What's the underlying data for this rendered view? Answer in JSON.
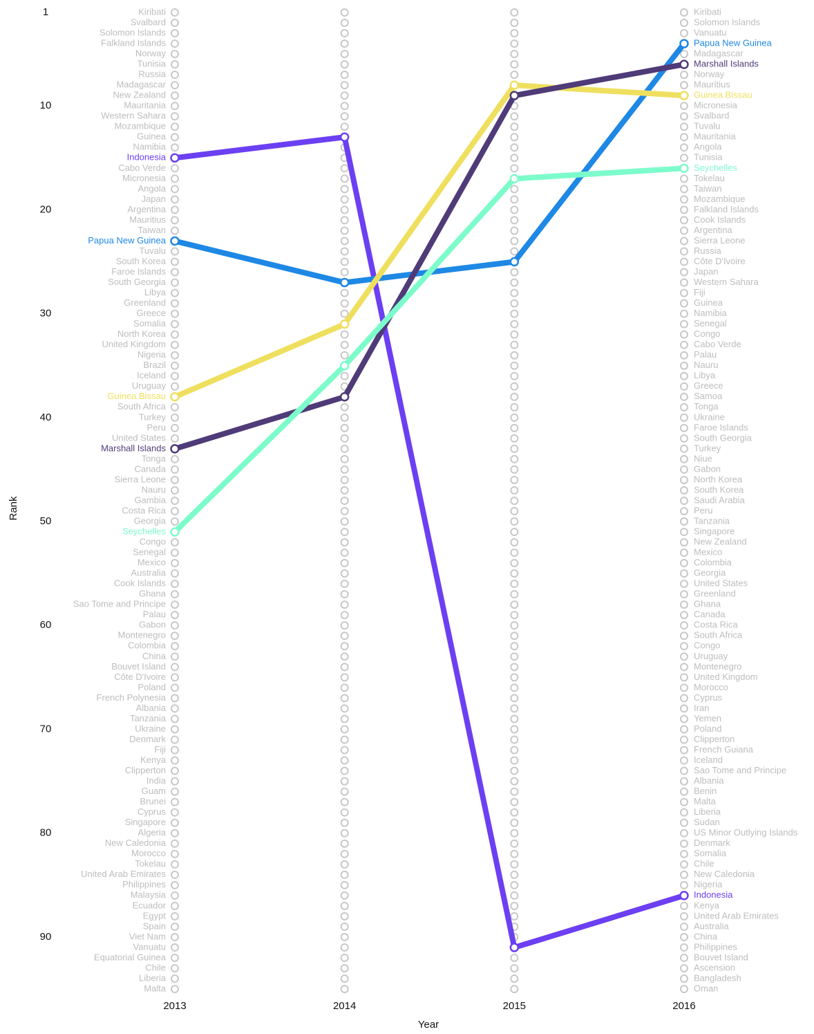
{
  "chart_data": {
    "type": "bump",
    "x": [
      2013,
      2014,
      2015,
      2016
    ],
    "xlabel": "Year",
    "ylabel": "Rank",
    "ylim": [
      1,
      95
    ],
    "yticks": [
      1,
      10,
      20,
      30,
      40,
      50,
      60,
      70,
      80,
      90
    ],
    "labels_first": [
      "Kiribati",
      "Svalbard",
      "Solomon Islands",
      "Falkland Islands",
      "Norway",
      "Tunisia",
      "Russia",
      "Madagascar",
      "New Zealand",
      "Mauritania",
      "Western Sahara",
      "Mozambique",
      "Guinea",
      "Namibia",
      "Indonesia",
      "Cabo Verde",
      "Micronesia",
      "Angola",
      "Japan",
      "Argentina",
      "Mauritius",
      "Taiwan",
      "Papua New Guinea",
      "Tuvalu",
      "South Korea",
      "Faroe Islands",
      "South Georgia",
      "Libya",
      "Greenland",
      "Greece",
      "Somalia",
      "North Korea",
      "United Kingdom",
      "Nigeria",
      "Brazil",
      "Iceland",
      "Uruguay",
      "Guinea Bissau",
      "South Africa",
      "Turkey",
      "Peru",
      "United States",
      "Marshall Islands",
      "Tonga",
      "Canada",
      "Sierra Leone",
      "Nauru",
      "Gambia",
      "Costa Rica",
      "Georgia",
      "Seychelles",
      "Congo",
      "Senegal",
      "Mexico",
      "Australia",
      "Cook Islands",
      "Ghana",
      "Sao Tome and Principe",
      "Palau",
      "Gabon",
      "Montenegro",
      "Colombia",
      "China",
      "Bouvet Island",
      "Côte D'Ivoire",
      "Poland",
      "French Polynesia",
      "Albania",
      "Tanzania",
      "Ukraine",
      "Denmark",
      "Fiji",
      "Kenya",
      "Clipperton",
      "India",
      "Guam",
      "Brunei",
      "Cyprus",
      "Singapore",
      "Algeria",
      "New Caledonia",
      "Morocco",
      "Tokelau",
      "United Arab Emirates",
      "Philippines",
      "Malaysia",
      "Ecuador",
      "Egypt",
      "Spain",
      "Viet Nam",
      "Vanuatu",
      "Equatorial Guinea",
      "Chile",
      "Liberia",
      "Malta"
    ],
    "labels_last": [
      "Kiribati",
      "Solomon Islands",
      "Vanuatu",
      "Papua New Guinea",
      "Madagascar",
      "Marshall Islands",
      "Norway",
      "Mauritius",
      "Guinea Bissau",
      "Micronesia",
      "Svalbard",
      "Tuvalu",
      "Mauritania",
      "Angola",
      "Tunisia",
      "Seychelles",
      "Tokelau",
      "Taiwan",
      "Mozambique",
      "Falkland Islands",
      "Cook Islands",
      "Argentina",
      "Sierra Leone",
      "Russia",
      "Côte D'Ivoire",
      "Japan",
      "Western Sahara",
      "Fiji",
      "Guinea",
      "Namibia",
      "Senegal",
      "Congo",
      "Cabo Verde",
      "Palau",
      "Nauru",
      "Libya",
      "Greece",
      "Samoa",
      "Tonga",
      "Ukraine",
      "Faroe Islands",
      "South Georgia",
      "Turkey",
      "Niue",
      "Gabon",
      "North Korea",
      "South Korea",
      "Saudi Arabia",
      "Peru",
      "Tanzania",
      "Singapore",
      "New Zealand",
      "Mexico",
      "Colombia",
      "Georgia",
      "United States",
      "Greenland",
      "Ghana",
      "Canada",
      "Costa Rica",
      "South Africa",
      "Congo",
      "Uruguay",
      "Montenegro",
      "United Kingdom",
      "Morocco",
      "Cyprus",
      "Iran",
      "Yemen",
      "Poland",
      "Clipperton",
      "French Guiana",
      "Iceland",
      "Sao Tome and Principe",
      "Albania",
      "Benin",
      "Malta",
      "Liberia",
      "Sudan",
      "US Minor Outlying Islands",
      "Denmark",
      "Somalia",
      "Chile",
      "New Caledonia",
      "Nigeria",
      "Indonesia",
      "Kenya",
      "United Arab Emirates",
      "Australia",
      "China",
      "Philippines",
      "Bouvet Island",
      "Ascension",
      "Bangladesh",
      "Oman"
    ],
    "series": [
      {
        "name": "Indonesia",
        "color": "#6c3ff2",
        "values": [
          15,
          13,
          91,
          86
        ]
      },
      {
        "name": "Papua New Guinea",
        "color": "#1e88e5",
        "values": [
          23,
          27,
          25,
          4
        ]
      },
      {
        "name": "Guinea Bissau",
        "color": "#efdf5f",
        "values": [
          38,
          31,
          8,
          9
        ]
      },
      {
        "name": "Marshall Islands",
        "color": "#4f3b78",
        "values": [
          43,
          38,
          9,
          6
        ]
      },
      {
        "name": "Seychelles",
        "color": "#7dfccb",
        "values": [
          51,
          35,
          17,
          16
        ]
      }
    ]
  }
}
